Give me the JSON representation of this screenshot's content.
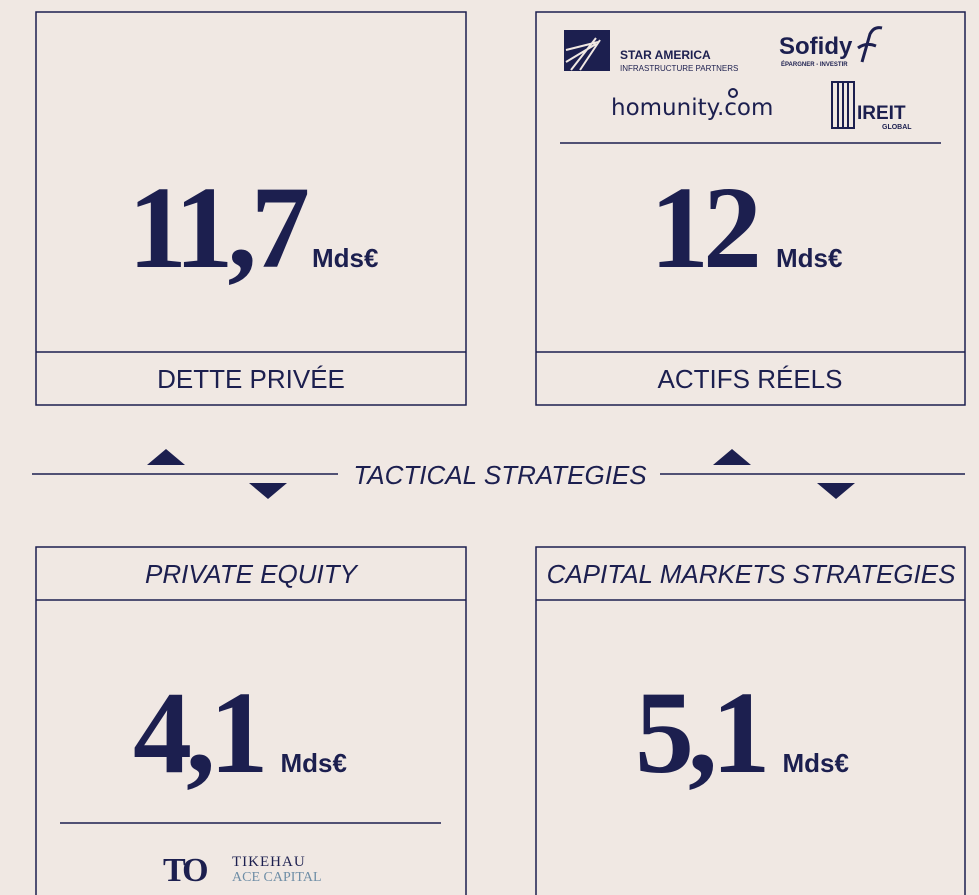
{
  "blocks": [
    {
      "label": "DETTE PRIVÉE",
      "amount": "11,7",
      "unit": "Mds€"
    },
    {
      "label": "ACTIFS RÉELS",
      "amount": "12",
      "unit": "Mds€",
      "logos": {
        "star_america": "STAR AMERICA",
        "star_america_sub": "INFRASTRUCTURE PARTNERS",
        "sofidy": "Sofidy",
        "sofidy_sub": "ÉPARGNER - INVESTIR",
        "homunity": "homunity.com",
        "ireit": "IREIT",
        "ireit_sub": "GLOBAL"
      }
    },
    {
      "label": "PRIVATE EQUITY",
      "amount": "4,1",
      "unit": "Mds€",
      "logos": {
        "tikehau": "TIKEHAU",
        "tikehau_sub": "ACE CAPITAL"
      }
    },
    {
      "label": "CAPITAL MARKETS STRATEGIES",
      "amount": "5,1",
      "unit": "Mds€"
    }
  ],
  "divider": "TACTICAL STRATEGIES"
}
